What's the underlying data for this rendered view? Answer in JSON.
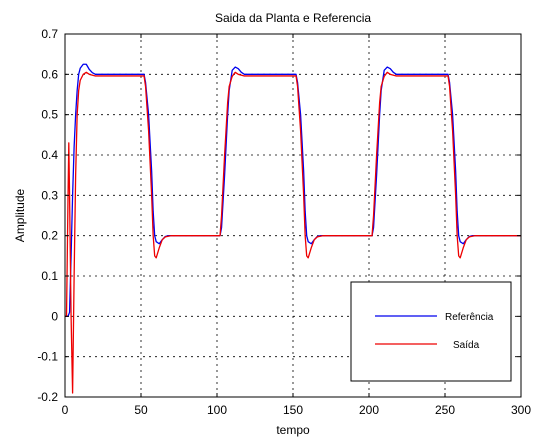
{
  "chart_data": {
    "type": "line",
    "title": "Saida da Planta e Referencia",
    "xlabel": "tempo",
    "ylabel": "Amplitude",
    "xlim": [
      0,
      300
    ],
    "ylim": [
      -0.2,
      0.7
    ],
    "xticks": [
      0,
      50,
      100,
      150,
      200,
      250,
      300
    ],
    "yticks": [
      -0.2,
      -0.1,
      0,
      0.1,
      0.2,
      0.3,
      0.4,
      0.5,
      0.6,
      0.7
    ],
    "xtick_labels": [
      "0",
      "50",
      "100",
      "150",
      "200",
      "250",
      "300"
    ],
    "ytick_labels": [
      "-0.2",
      "-0.1",
      "0",
      "0.1",
      "0.2",
      "0.3",
      "0.4",
      "0.5",
      "0.6",
      "0.7"
    ],
    "grid": true,
    "legend_position": "lower-right",
    "series": [
      {
        "name": "Referência",
        "color": "#0000ee",
        "points": [
          [
            0,
            0
          ],
          [
            2,
            0
          ],
          [
            3,
            0.01
          ],
          [
            4,
            0.15
          ],
          [
            5,
            0.3
          ],
          [
            6,
            0.42
          ],
          [
            7,
            0.5
          ],
          [
            8,
            0.56
          ],
          [
            9,
            0.6
          ],
          [
            10,
            0.615
          ],
          [
            12,
            0.625
          ],
          [
            14,
            0.625
          ],
          [
            16,
            0.612
          ],
          [
            18,
            0.604
          ],
          [
            20,
            0.6
          ],
          [
            52,
            0.6
          ],
          [
            53,
            0.58
          ],
          [
            55,
            0.5
          ],
          [
            57,
            0.36
          ],
          [
            58,
            0.26
          ],
          [
            59,
            0.2
          ],
          [
            60,
            0.185
          ],
          [
            62,
            0.18
          ],
          [
            64,
            0.19
          ],
          [
            66,
            0.198
          ],
          [
            68,
            0.2
          ],
          [
            102,
            0.2
          ],
          [
            103,
            0.22
          ],
          [
            105,
            0.35
          ],
          [
            107,
            0.5
          ],
          [
            108,
            0.56
          ],
          [
            110,
            0.61
          ],
          [
            112,
            0.618
          ],
          [
            114,
            0.614
          ],
          [
            116,
            0.605
          ],
          [
            118,
            0.6
          ],
          [
            152,
            0.6
          ],
          [
            153,
            0.58
          ],
          [
            155,
            0.5
          ],
          [
            157,
            0.36
          ],
          [
            158,
            0.26
          ],
          [
            159,
            0.2
          ],
          [
            160,
            0.185
          ],
          [
            162,
            0.18
          ],
          [
            164,
            0.19
          ],
          [
            166,
            0.198
          ],
          [
            168,
            0.2
          ],
          [
            202,
            0.2
          ],
          [
            203,
            0.22
          ],
          [
            205,
            0.35
          ],
          [
            207,
            0.5
          ],
          [
            208,
            0.56
          ],
          [
            210,
            0.61
          ],
          [
            212,
            0.618
          ],
          [
            214,
            0.614
          ],
          [
            216,
            0.605
          ],
          [
            218,
            0.6
          ],
          [
            252,
            0.6
          ],
          [
            253,
            0.58
          ],
          [
            255,
            0.5
          ],
          [
            257,
            0.36
          ],
          [
            258,
            0.26
          ],
          [
            259,
            0.2
          ],
          [
            260,
            0.185
          ],
          [
            262,
            0.18
          ],
          [
            264,
            0.19
          ],
          [
            266,
            0.198
          ],
          [
            268,
            0.2
          ],
          [
            300,
            0.2
          ]
        ]
      },
      {
        "name": "Saída",
        "color": "#ee0000",
        "points": [
          [
            0,
            0
          ],
          [
            1,
            0
          ],
          [
            2,
            0.3
          ],
          [
            2.5,
            0.43
          ],
          [
            3,
            0.3
          ],
          [
            4,
            0.0
          ],
          [
            5,
            -0.19
          ],
          [
            6,
            0.1
          ],
          [
            7,
            0.35
          ],
          [
            8,
            0.5
          ],
          [
            9,
            0.56
          ],
          [
            10,
            0.585
          ],
          [
            12,
            0.6
          ],
          [
            14,
            0.605
          ],
          [
            16,
            0.6
          ],
          [
            20,
            0.596
          ],
          [
            52,
            0.596
          ],
          [
            53,
            0.57
          ],
          [
            55,
            0.46
          ],
          [
            57,
            0.3
          ],
          [
            58,
            0.2
          ],
          [
            59,
            0.15
          ],
          [
            60,
            0.145
          ],
          [
            62,
            0.17
          ],
          [
            64,
            0.19
          ],
          [
            66,
            0.197
          ],
          [
            70,
            0.2
          ],
          [
            102,
            0.2
          ],
          [
            103,
            0.25
          ],
          [
            105,
            0.4
          ],
          [
            107,
            0.53
          ],
          [
            108,
            0.57
          ],
          [
            110,
            0.595
          ],
          [
            112,
            0.605
          ],
          [
            114,
            0.6
          ],
          [
            118,
            0.596
          ],
          [
            152,
            0.596
          ],
          [
            153,
            0.57
          ],
          [
            155,
            0.46
          ],
          [
            157,
            0.3
          ],
          [
            158,
            0.2
          ],
          [
            159,
            0.15
          ],
          [
            160,
            0.145
          ],
          [
            162,
            0.17
          ],
          [
            164,
            0.19
          ],
          [
            166,
            0.197
          ],
          [
            170,
            0.2
          ],
          [
            202,
            0.2
          ],
          [
            203,
            0.25
          ],
          [
            205,
            0.4
          ],
          [
            207,
            0.53
          ],
          [
            208,
            0.57
          ],
          [
            210,
            0.595
          ],
          [
            212,
            0.605
          ],
          [
            214,
            0.6
          ],
          [
            218,
            0.596
          ],
          [
            252,
            0.596
          ],
          [
            253,
            0.57
          ],
          [
            255,
            0.46
          ],
          [
            257,
            0.3
          ],
          [
            258,
            0.2
          ],
          [
            259,
            0.15
          ],
          [
            260,
            0.145
          ],
          [
            262,
            0.17
          ],
          [
            264,
            0.19
          ],
          [
            266,
            0.197
          ],
          [
            270,
            0.2
          ],
          [
            300,
            0.2
          ]
        ]
      }
    ]
  }
}
